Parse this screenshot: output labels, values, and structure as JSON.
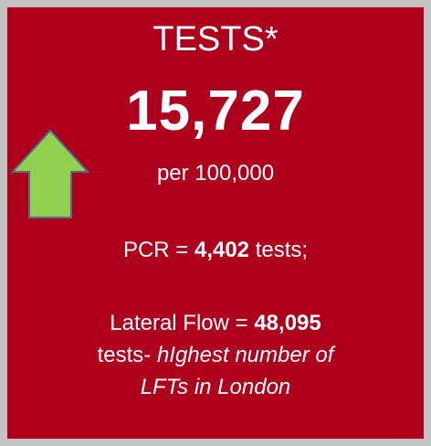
{
  "title": "TESTS*",
  "headline": {
    "value": "15,727",
    "unit": "per 100,000"
  },
  "pcr": {
    "lead": "PCR = ",
    "value": "4,402",
    "tail": " tests;"
  },
  "lateral_flow": {
    "lead": "Lateral Flow = ",
    "value": "48,095",
    "tail": "tests- ",
    "note_1": "hIghest number of",
    "note_2": "LFTs in London"
  }
}
